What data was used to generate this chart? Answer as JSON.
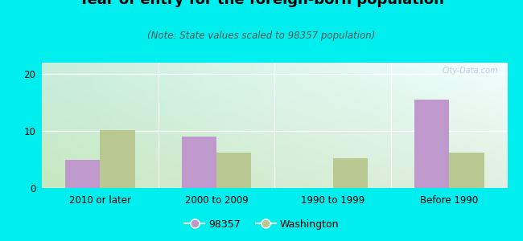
{
  "subtitle": "(Note: State values scaled to 98357 population)",
  "categories": [
    "2010 or later",
    "2000 to 2009",
    "1990 to 1999",
    "Before 1990"
  ],
  "values_98357": [
    5.0,
    9.0,
    0,
    15.5
  ],
  "values_washington": [
    10.2,
    6.2,
    5.2,
    6.2
  ],
  "bar_color_98357": "#c099cc",
  "bar_color_washington": "#b8c890",
  "background_color": "#00EEEE",
  "plot_bg_topleft": "#c8eedd",
  "plot_bg_topright": "#f0ffff",
  "plot_bg_bottom": "#e8f5e0",
  "ylim": [
    0,
    22
  ],
  "yticks": [
    0,
    10,
    20
  ],
  "bar_width": 0.3,
  "title_fontsize": 13,
  "subtitle_fontsize": 8.5,
  "legend_label_98357": "98357",
  "legend_label_washington": "Washington",
  "watermark": "City-Data.com"
}
